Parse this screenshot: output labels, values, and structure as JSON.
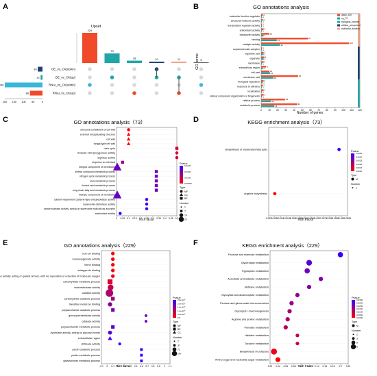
{
  "panels": [
    {
      "id": "A",
      "letter": "A"
    },
    {
      "id": "B",
      "letter": "B"
    },
    {
      "id": "C",
      "letter": "C"
    },
    {
      "id": "D",
      "letter": "D"
    },
    {
      "id": "E",
      "letter": "E"
    },
    {
      "id": "F",
      "letter": "F"
    }
  ],
  "colors": {
    "red": "#f04a2a",
    "teal": "#1fa6a6",
    "navy": "#1f3f6e",
    "peach": "#f3a589",
    "cyan": "#3ab7d9",
    "upset_bar_colors": [
      "#f04a2a",
      "#1fa6a6",
      "#1fa6a6",
      "#1f3f6e",
      "#f3a589",
      "#555555"
    ],
    "pvalue_low": "#3b00ff",
    "pvalue_high": "#ff0000"
  },
  "chart_data": [
    {
      "panel": "A",
      "type": "upset",
      "title": "Upset",
      "intersection_values": [
        229,
        73,
        18,
        10,
        11,
        5
      ],
      "sets": [
        "OE_vs_CK(down)",
        "OE_vs_CK(up)",
        "RNAi_vs_CK(down)",
        "RNAi_vs_CK(up)"
      ],
      "set_sizes": [
        30,
        12,
        240,
        80
      ],
      "set_size_ticks": [
        "200",
        "150",
        "100",
        "50",
        "0"
      ],
      "matrix": [
        [
          0,
          0,
          0,
          1,
          0,
          0
        ],
        [
          0,
          1,
          0,
          1,
          1,
          0
        ],
        [
          1,
          0,
          0,
          0,
          0,
          1
        ],
        [
          0,
          0,
          1,
          0,
          1,
          0
        ]
      ]
    },
    {
      "panel": "B",
      "type": "bar",
      "orientation": "horizontal",
      "title": "GO annotations analysis",
      "xlabel": "Number of genes",
      "ylabel": "GO terms",
      "xlim": [
        0,
        120
      ],
      "xticks": [
        "0",
        "10",
        "20",
        "30",
        "40",
        "50",
        "60",
        "70",
        "80",
        "90",
        "100",
        "110",
        "120"
      ],
      "categories": [
        "molecular function regulator",
        "structural molecule activity",
        "transcription regulator activity",
        "antioxidant activity",
        "transporter activity",
        "binding",
        "catalytic activity",
        "supramolecular complex",
        "organelle part",
        "organelle",
        "membrane",
        "extracellular region",
        "cell part",
        "membrane part",
        "biological regulation",
        "response to stimulus",
        "localization",
        "cellular component organization or biogenesis",
        "cellular process",
        "metabolic process"
      ],
      "series": [
        {
          "name": "down_229",
          "values": [
            2,
            2,
            1,
            3,
            10,
            57,
            107,
            1,
            3,
            4,
            3,
            6,
            10,
            45,
            3,
            2,
            3,
            3,
            29,
            44
          ]
        },
        {
          "name": "up_73",
          "values": [
            1,
            1,
            1,
            1,
            3,
            19,
            23,
            1,
            3,
            3,
            1,
            2,
            11,
            15,
            2,
            1,
            1,
            1,
            12,
            16
          ]
        }
      ],
      "value_labels": [
        {
          "a": "2",
          "b": "1"
        },
        {
          "a": "2",
          "b": "1"
        },
        {
          "a": "1",
          "b": "1"
        },
        {
          "a": "3",
          "b": "1"
        },
        {
          "a": "10",
          "b": "3"
        },
        {
          "a": "57",
          "b": "19"
        },
        {
          "a": "107",
          "b": "23"
        },
        {
          "a": "1",
          "b": "1"
        },
        {
          "a": "3",
          "b": "3"
        },
        {
          "a": "4",
          "b": "3"
        },
        {
          "a": "3",
          "b": "1"
        },
        {
          "a": "6",
          "b": "2"
        },
        {
          "a": "10",
          "b": "11"
        },
        {
          "a": "45",
          "b": "15"
        },
        {
          "a": "3",
          "b": "2"
        },
        {
          "a": "2",
          "b": "1"
        },
        {
          "a": "3",
          "b": "1"
        },
        {
          "a": "3",
          "b": "1"
        },
        {
          "a": "29",
          "b": "12"
        },
        {
          "a": "44",
          "b": "16"
        }
      ],
      "groups": [
        {
          "name": "molecular_function",
          "from": 0,
          "to": 6,
          "color": "#f3a589"
        },
        {
          "name": "cellular_component",
          "from": 7,
          "to": 13,
          "color": "#1f3f6e"
        },
        {
          "name": "biological_process",
          "from": 14,
          "to": 19,
          "color": "#1fa6a6"
        }
      ],
      "legend": [
        "down_229",
        "up_73",
        "biological_process",
        "cellular_component",
        "molecular_function"
      ],
      "legend_position": "top-right"
    },
    {
      "panel": "C",
      "type": "scatter",
      "title": "GO annotations analysis（73）",
      "xlabel": "Rich factor",
      "xlim": [
        0,
        0.5
      ],
      "xticks": [
        "0",
        "0.05",
        "0.1",
        "0.15",
        "0.2",
        "0.25",
        "0.3",
        "0.35",
        "0.4",
        "0.45",
        "0.5"
      ],
      "categories": [
        "structural constituent of cell wall",
        "external encapsulating structure",
        "cell wall",
        "fungal-type cell wall",
        "urea cycle",
        "linoleate 13S-lipoxygenase activity",
        "arginase activity",
        "response to chemical",
        "integral component of membrane",
        "olefinic compound metabolic process",
        "nitrogen cycle metabolic process",
        "urea metabolic process",
        "linoleic acid metabolic process",
        "long-chain fatty acid metabolic process",
        "intrinsic component of membrane",
        "calcium-dependent cysteine-type endopeptidase activity",
        "superoxide dismutase activity",
        "oxidoreductase activity, acting on superoxide radicals as acceptor",
        "antioxidant activity"
      ],
      "points": [
        {
          "x": 0.1,
          "number": 1,
          "pvalue": 0.001,
          "type": "MF"
        },
        {
          "x": 0.1,
          "number": 1,
          "pvalue": 0.001,
          "type": "CC"
        },
        {
          "x": 0.1,
          "number": 1,
          "pvalue": 0.001,
          "type": "CC"
        },
        {
          "x": 0.1,
          "number": 1,
          "pvalue": 0.001,
          "type": "CC"
        },
        {
          "x": 0.5,
          "number": 1,
          "pvalue": 0.006,
          "type": "BP"
        },
        {
          "x": 0.5,
          "number": 1,
          "pvalue": 0.006,
          "type": "MF"
        },
        {
          "x": 0.5,
          "number": 1,
          "pvalue": 0.006,
          "type": "MF"
        },
        {
          "x": 0.05,
          "number": 1,
          "pvalue": 0.012,
          "type": "BP"
        },
        {
          "x": 0.006,
          "number": 20,
          "pvalue": 0.018,
          "type": "CC"
        },
        {
          "x": 0.33,
          "number": 1,
          "pvalue": 0.018,
          "type": "BP"
        },
        {
          "x": 0.33,
          "number": 1,
          "pvalue": 0.018,
          "type": "BP"
        },
        {
          "x": 0.33,
          "number": 1,
          "pvalue": 0.018,
          "type": "BP"
        },
        {
          "x": 0.33,
          "number": 1,
          "pvalue": 0.018,
          "type": "BP"
        },
        {
          "x": 0.33,
          "number": 1,
          "pvalue": 0.018,
          "type": "BP"
        },
        {
          "x": 0.006,
          "number": 20,
          "pvalue": 0.019,
          "type": "CC"
        },
        {
          "x": 0.25,
          "number": 1,
          "pvalue": 0.024,
          "type": "MF"
        },
        {
          "x": 0.25,
          "number": 1,
          "pvalue": 0.024,
          "type": "MF"
        },
        {
          "x": 0.25,
          "number": 1,
          "pvalue": 0.024,
          "type": "MF"
        },
        {
          "x": 0.03,
          "number": 1,
          "pvalue": 0.024,
          "type": "MF"
        }
      ],
      "legend": {
        "pvalue_title": "Pvalue",
        "pvalue_ticks": [
          "0.0200",
          "0.0150",
          "0.0100",
          "0.00500"
        ],
        "type_title": "Type",
        "types": [
          "MF",
          "CC",
          "BP"
        ],
        "number_title": "Number",
        "numbers": [
          "1",
          "7",
          "14",
          "20"
        ]
      }
    },
    {
      "panel": "D",
      "type": "scatter",
      "title": "KEGG enrichment analysis（73）",
      "xlabel": "Rich Factor",
      "xlim": [
        0.053,
        0.0595
      ],
      "xticks": [
        "0.053",
        "0.0535",
        "0.054",
        "0.0545",
        "0.055",
        "0.0555",
        "0.056",
        "0.0565",
        "0.057",
        "0.0575",
        "0.058",
        "0.0585",
        "0.059",
        "0.0595"
      ],
      "categories": [
        "Biosynthesis of unsaturated fatty acids",
        "Arginine biosynthesis"
      ],
      "points": [
        {
          "x": 0.0588,
          "number": 1,
          "pvalue": 0.0035,
          "type": "M"
        },
        {
          "x": 0.0535,
          "number": 1,
          "pvalue": 0.001,
          "type": "M"
        }
      ],
      "legend": {
        "pvalue_title": "Pvalue",
        "pvalue_ticks": [
          "0.0035",
          "0.0030",
          "0.0025",
          "0.0020",
          "0.0015",
          "0.0010"
        ],
        "type_title": "Type",
        "types": [
          "M"
        ],
        "number_title": "Number",
        "numbers": [
          "1"
        ]
      }
    },
    {
      "panel": "E",
      "type": "scatter",
      "title": "GO annotations analysis（229）",
      "xlabel": "Rich factor",
      "xlim": [
        -0.1,
        1.1
      ],
      "xticks": [
        "-0.1",
        "0",
        "0.1",
        "0.2",
        "0.3",
        "0.4",
        "0.5",
        "0.6",
        "0.7",
        "0.8",
        "0.9",
        "1",
        "1.1"
      ],
      "categories": [
        "iron ion binding",
        "monooxygenase activity",
        "heme binding",
        "tetrapyrrole binding",
        "oxidoreductase activity, acting on paired donors, with inc orporation or reduction of molecular oxygen",
        "carbohydrate metabolic process",
        "oxidoreductase activity",
        "catalytic activity",
        "carbohydrate catabolic process",
        "transition metal ion binding",
        "polysaccharide catabolic process",
        "glucosylceramidase activity",
        "catalase activity",
        "polysaccharide metabolic process",
        "hydrolase activity, acting on glycosyl bonds",
        "extracellular region",
        "chitinase activity",
        "pectin catabolic process",
        "pectin metabolic process",
        "galacturonan metabolic process"
      ],
      "points": [
        {
          "x": 0.1,
          "number": 10,
          "pvalue": 2e-09,
          "type": "MF"
        },
        {
          "x": 0.1,
          "number": 10,
          "pvalue": 3e-09,
          "type": "MF"
        },
        {
          "x": 0.1,
          "number": 10,
          "pvalue": 3e-09,
          "type": "MF"
        },
        {
          "x": 0.1,
          "number": 10,
          "pvalue": 3e-09,
          "type": "MF"
        },
        {
          "x": 0.1,
          "number": 10,
          "pvalue": 4e-09,
          "type": "MF"
        },
        {
          "x": 0.05,
          "number": 30,
          "pvalue": 6e-09,
          "type": "BP"
        },
        {
          "x": 0.06,
          "number": 50,
          "pvalue": 9e-09,
          "type": "MF"
        },
        {
          "x": 0.04,
          "number": 107,
          "pvalue": 1.2e-08,
          "type": "MF"
        },
        {
          "x": 0.1,
          "number": 10,
          "pvalue": 1.4e-08,
          "type": "BP"
        },
        {
          "x": 0.05,
          "number": 20,
          "pvalue": 1.6e-08,
          "type": "MF"
        },
        {
          "x": 0.1,
          "number": 8,
          "pvalue": 1.8e-08,
          "type": "BP"
        },
        {
          "x": 0.68,
          "number": 2,
          "pvalue": 2e-08,
          "type": "MF"
        },
        {
          "x": 0.68,
          "number": 2,
          "pvalue": 2e-08,
          "type": "MF"
        },
        {
          "x": 0.1,
          "number": 8,
          "pvalue": 2.2e-08,
          "type": "BP"
        },
        {
          "x": 0.05,
          "number": 15,
          "pvalue": 2.2e-08,
          "type": "MF"
        },
        {
          "x": 0.05,
          "number": 10,
          "pvalue": 2.4e-08,
          "type": "CC"
        },
        {
          "x": 0.22,
          "number": 3,
          "pvalue": 2.5e-08,
          "type": "MF"
        },
        {
          "x": 0.6,
          "number": 2,
          "pvalue": 2.6e-08,
          "type": "BP"
        },
        {
          "x": 0.6,
          "number": 2,
          "pvalue": 2.6e-08,
          "type": "BP"
        },
        {
          "x": 0.6,
          "number": 2,
          "pvalue": 2.6e-08,
          "type": "BP"
        }
      ],
      "legend": {
        "pvalue_title": "Pvalue",
        "pvalue_ticks": [
          "2.8e-10⁸",
          "2.0e-10⁸",
          "1.6e-10⁸",
          "1.2e-10⁸",
          "0.4e-10⁸",
          "0.8"
        ],
        "type_title": "Type",
        "types": [
          "MF",
          "BP",
          "CC"
        ],
        "number_title": "Number",
        "numbers": [
          "2",
          "37",
          "71",
          "107"
        ]
      }
    },
    {
      "panel": "F",
      "type": "scatter",
      "title": "KEGG enrichment analysis（229）",
      "xlabel": "Rich Factor",
      "xlim": [
        0.02,
        0.22
      ],
      "xticks": [
        "0.02",
        "0.04",
        "0.06",
        "0.08",
        "0.1",
        "0.12",
        "0.14",
        "0.16",
        "0.18",
        "0.2",
        "0.22"
      ],
      "categories": [
        "Fructose and mannose metabolism",
        "Glycerolipid metabolism",
        "Tryptophan metabolism",
        "Ascorbate and aldarate metabolism",
        "Methane metabolism",
        "Glyoxylate and dicarboxylate metabolism",
        "Pentose and glucuronate interconversions",
        "Glycolysis / Gluconeogenesis",
        "Arginine and proline metabolism",
        "Pyruvate metabolism",
        "Histidine metabolism",
        "Tyrosine metabolism",
        "Biosynthesis of cofactors",
        "Amino sugar and nucleotide sugar metabolism"
      ],
      "points": [
        {
          "x": 0.2,
          "number": 4,
          "pvalue": 0.03,
          "type": "M"
        },
        {
          "x": 0.12,
          "number": 5,
          "pvalue": 0.026,
          "type": "M"
        },
        {
          "x": 0.115,
          "number": 4,
          "pvalue": 0.023,
          "type": "M"
        },
        {
          "x": 0.15,
          "number": 2,
          "pvalue": 0.021,
          "type": "M"
        },
        {
          "x": 0.12,
          "number": 2,
          "pvalue": 0.02,
          "type": "M"
        },
        {
          "x": 0.09,
          "number": 2,
          "pvalue": 0.019,
          "type": "M"
        },
        {
          "x": 0.075,
          "number": 2,
          "pvalue": 0.018,
          "type": "M"
        },
        {
          "x": 0.07,
          "number": 2,
          "pvalue": 0.016,
          "type": "M"
        },
        {
          "x": 0.065,
          "number": 2,
          "pvalue": 0.015,
          "type": "M"
        },
        {
          "x": 0.06,
          "number": 2,
          "pvalue": 0.013,
          "type": "M"
        },
        {
          "x": 0.09,
          "number": 1,
          "pvalue": 0.012,
          "type": "M"
        },
        {
          "x": 0.09,
          "number": 1,
          "pvalue": 0.011,
          "type": "M"
        },
        {
          "x": 0.03,
          "number": 6,
          "pvalue": 0.006,
          "type": "M"
        },
        {
          "x": 0.04,
          "number": 3,
          "pvalue": 0.004,
          "type": "M"
        }
      ],
      "legend": {
        "pvalue_title": "Pvalue",
        "pvalue_ticks": [
          "0.0300",
          "0.0250",
          "0.0200",
          "0.0150",
          "0.0100",
          "0.0050",
          "0.0000"
        ],
        "type_title": "Type",
        "types": [
          "M"
        ],
        "number_title": "Number",
        "numbers": [
          "2",
          "3",
          "5",
          "6"
        ]
      }
    }
  ]
}
